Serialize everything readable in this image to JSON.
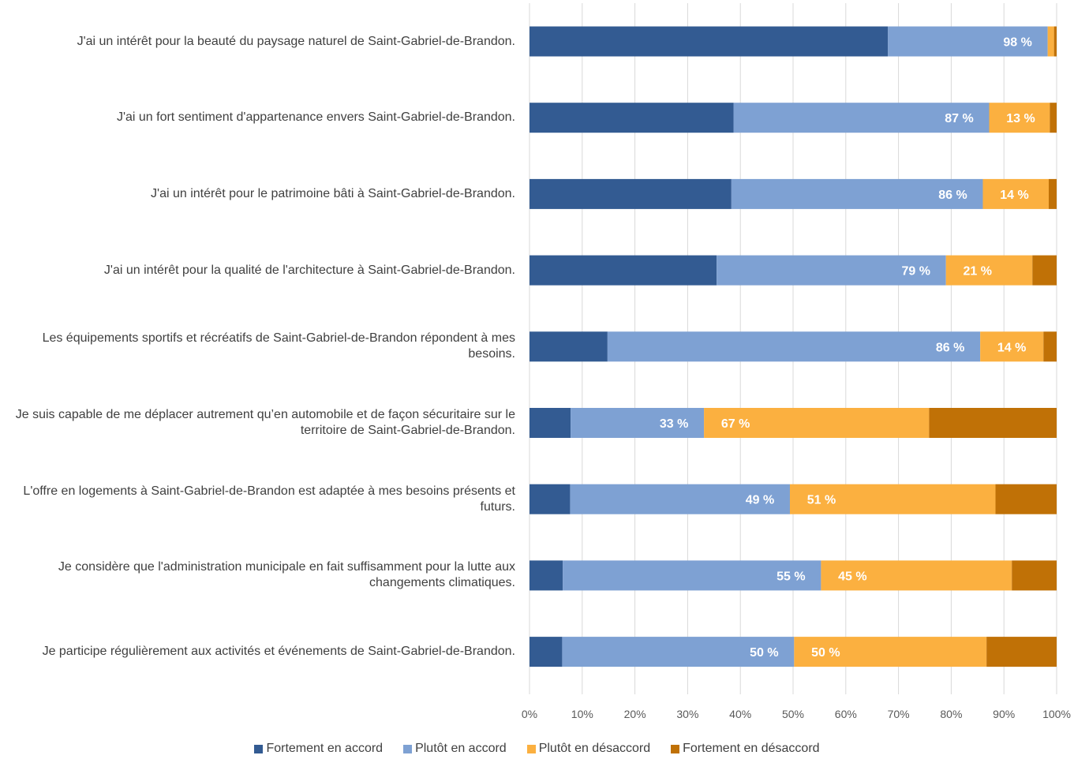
{
  "chart_data": {
    "type": "bar",
    "orientation": "horizontal",
    "stacked": true,
    "title": "",
    "xlabel": "",
    "ylabel": "",
    "xlim": [
      0,
      100
    ],
    "x_ticks": [
      "0%",
      "10%",
      "20%",
      "30%",
      "40%",
      "50%",
      "60%",
      "70%",
      "80%",
      "90%",
      "100%"
    ],
    "grid": "vertical",
    "legend": "bottom",
    "categories": [
      "J'ai un intérêt pour la beauté du paysage naturel de Saint-Gabriel-de-Brandon.",
      "J'ai un fort sentiment d'appartenance envers Saint-Gabriel-de-Brandon.",
      "J'ai un intérêt pour le patrimoine bâti à Saint-Gabriel-de-Brandon.",
      "J'ai un intérêt pour la qualité de l'architecture à Saint-Gabriel-de-Brandon.",
      "Les équipements sportifs et récréatifs de Saint-Gabriel-de-Brandon répondent à mes besoins.",
      "Je suis capable de me déplacer autrement qu’en automobile et de façon sécuritaire sur le territoire de Saint-Gabriel-de-Brandon.",
      "L'offre en logements à Saint-Gabriel-de-Brandon est adaptée à mes besoins présents et futurs.",
      "Je considère que l'administration municipale en fait suffisamment pour la lutte aux changements climatiques.",
      "Je participe régulièrement aux activités et événements de Saint-Gabriel-de-Brandon."
    ],
    "series": [
      {
        "name": "Fortement en accord",
        "color": "#335b92",
        "values": [
          68,
          38.7,
          38.3,
          35.5,
          14.8,
          7.8,
          7.7,
          6.3,
          6.2
        ]
      },
      {
        "name": "Plutôt en accord",
        "color": "#7ea1d3",
        "values": [
          30.3,
          48.5,
          47.7,
          43.5,
          70.7,
          25.3,
          41.7,
          49,
          44
        ]
      },
      {
        "name": "Plutôt en désaccord",
        "color": "#fbb040",
        "values": [
          1.2,
          11.5,
          12.5,
          16.4,
          12,
          42.7,
          39,
          36.2,
          36.5
        ]
      },
      {
        "name": "Fortement en désaccord",
        "color": "#c07106",
        "values": [
          0.5,
          1.3,
          1.5,
          4.6,
          2.5,
          24.2,
          11.6,
          8.5,
          13.3
        ]
      }
    ],
    "annotations": [
      {
        "category_index": 0,
        "value": "98 %",
        "side": "agree"
      },
      {
        "category_index": 1,
        "value": "87 %",
        "side": "agree"
      },
      {
        "category_index": 1,
        "value": "13 %",
        "side": "disagree"
      },
      {
        "category_index": 2,
        "value": "86 %",
        "side": "agree"
      },
      {
        "category_index": 2,
        "value": "14 %",
        "side": "disagree"
      },
      {
        "category_index": 3,
        "value": "79 %",
        "side": "agree"
      },
      {
        "category_index": 3,
        "value": "21 %",
        "side": "disagree"
      },
      {
        "category_index": 4,
        "value": "86 %",
        "side": "agree"
      },
      {
        "category_index": 4,
        "value": "14 %",
        "side": "disagree"
      },
      {
        "category_index": 5,
        "value": "33 %",
        "side": "agree"
      },
      {
        "category_index": 5,
        "value": "67 %",
        "side": "disagree"
      },
      {
        "category_index": 6,
        "value": "49 %",
        "side": "agree"
      },
      {
        "category_index": 6,
        "value": "51 %",
        "side": "disagree"
      },
      {
        "category_index": 7,
        "value": "55 %",
        "side": "agree"
      },
      {
        "category_index": 7,
        "value": "45 %",
        "side": "disagree"
      },
      {
        "category_index": 8,
        "value": "50 %",
        "side": "agree"
      },
      {
        "category_index": 8,
        "value": "50 %",
        "side": "disagree"
      }
    ]
  }
}
